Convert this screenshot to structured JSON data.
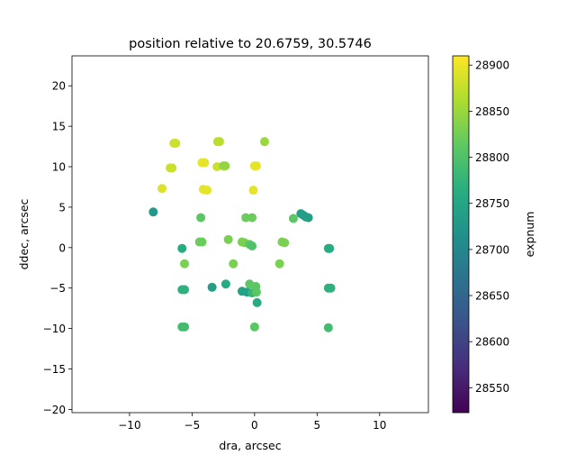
{
  "chart_data": {
    "type": "scatter",
    "title": "position relative to 20.6759, 30.5746",
    "xlabel": "dra, arcsec",
    "ylabel": "ddec, arcsec",
    "xlim": [
      -14.6,
      13.9
    ],
    "ylim": [
      -20.4,
      23.7
    ],
    "xticks": [
      -10,
      -5,
      0,
      5,
      10
    ],
    "yticks": [
      -20,
      -15,
      -10,
      -5,
      0,
      5,
      10,
      15,
      20
    ],
    "grid": false,
    "colorbar": {
      "label": "expnum",
      "colormap": "viridis",
      "range": [
        28523,
        28910
      ],
      "ticks": [
        28550,
        28600,
        28650,
        28700,
        28750,
        28800,
        28850,
        28900
      ]
    },
    "points": [
      {
        "x": -6.3,
        "y": 12.9,
        "c": 28880
      },
      {
        "x": -6.45,
        "y": 12.9,
        "c": 28880
      },
      {
        "x": -2.8,
        "y": 13.1,
        "c": 28870
      },
      {
        "x": -2.95,
        "y": 13.1,
        "c": 28870
      },
      {
        "x": 0.8,
        "y": 13.1,
        "c": 28850
      },
      {
        "x": -6.75,
        "y": 9.85,
        "c": 28880
      },
      {
        "x": -6.6,
        "y": 9.85,
        "c": 28880
      },
      {
        "x": -4.0,
        "y": 10.5,
        "c": 28895
      },
      {
        "x": -4.2,
        "y": 10.5,
        "c": 28895
      },
      {
        "x": -3.0,
        "y": 10.0,
        "c": 28880
      },
      {
        "x": -2.35,
        "y": 10.1,
        "c": 28845
      },
      {
        "x": -2.5,
        "y": 10.1,
        "c": 28845
      },
      {
        "x": 0.0,
        "y": 10.1,
        "c": 28895
      },
      {
        "x": 0.15,
        "y": 10.1,
        "c": 28895
      },
      {
        "x": -7.4,
        "y": 7.3,
        "c": 28890
      },
      {
        "x": -4.1,
        "y": 7.2,
        "c": 28895
      },
      {
        "x": -3.8,
        "y": 7.1,
        "c": 28895
      },
      {
        "x": -0.1,
        "y": 7.1,
        "c": 28895
      },
      {
        "x": -8.1,
        "y": 4.4,
        "c": 28730
      },
      {
        "x": -4.3,
        "y": 3.7,
        "c": 28810
      },
      {
        "x": -0.7,
        "y": 3.7,
        "c": 28820
      },
      {
        "x": -0.2,
        "y": 3.7,
        "c": 28820
      },
      {
        "x": 3.1,
        "y": 3.6,
        "c": 28810
      },
      {
        "x": 3.7,
        "y": 4.2,
        "c": 28740
      },
      {
        "x": 3.9,
        "y": 4.0,
        "c": 28740
      },
      {
        "x": 4.1,
        "y": 3.8,
        "c": 28740
      },
      {
        "x": 4.3,
        "y": 3.7,
        "c": 28740
      },
      {
        "x": -5.8,
        "y": -0.1,
        "c": 28760
      },
      {
        "x": -4.4,
        "y": 0.7,
        "c": 28820
      },
      {
        "x": -4.2,
        "y": 0.7,
        "c": 28820
      },
      {
        "x": -2.1,
        "y": 1.0,
        "c": 28830
      },
      {
        "x": -1.0,
        "y": 0.7,
        "c": 28830
      },
      {
        "x": -0.8,
        "y": 0.6,
        "c": 28830
      },
      {
        "x": -0.4,
        "y": 0.4,
        "c": 28810
      },
      {
        "x": -0.2,
        "y": 0.2,
        "c": 28800
      },
      {
        "x": 2.2,
        "y": 0.7,
        "c": 28830
      },
      {
        "x": 2.4,
        "y": 0.6,
        "c": 28830
      },
      {
        "x": 5.9,
        "y": -0.1,
        "c": 28760
      },
      {
        "x": 6.0,
        "y": -0.1,
        "c": 28760
      },
      {
        "x": -5.6,
        "y": -2.0,
        "c": 28830
      },
      {
        "x": -1.7,
        "y": -2.0,
        "c": 28830
      },
      {
        "x": 2.0,
        "y": -2.0,
        "c": 28830
      },
      {
        "x": -5.8,
        "y": -5.2,
        "c": 28770
      },
      {
        "x": -5.6,
        "y": -5.2,
        "c": 28770
      },
      {
        "x": -3.4,
        "y": -4.9,
        "c": 28740
      },
      {
        "x": -2.3,
        "y": -4.5,
        "c": 28760
      },
      {
        "x": -1.0,
        "y": -5.4,
        "c": 28745
      },
      {
        "x": -0.6,
        "y": -5.5,
        "c": 28745
      },
      {
        "x": -0.4,
        "y": -4.5,
        "c": 28810
      },
      {
        "x": -0.2,
        "y": -5.6,
        "c": 28780
      },
      {
        "x": 0.1,
        "y": -4.8,
        "c": 28810
      },
      {
        "x": 0.15,
        "y": -5.5,
        "c": 28810
      },
      {
        "x": 0.2,
        "y": -6.8,
        "c": 28760
      },
      {
        "x": 5.9,
        "y": -5.0,
        "c": 28770
      },
      {
        "x": 6.1,
        "y": -5.0,
        "c": 28770
      },
      {
        "x": -5.8,
        "y": -9.8,
        "c": 28790
      },
      {
        "x": -5.6,
        "y": -9.8,
        "c": 28790
      },
      {
        "x": 0.0,
        "y": -9.8,
        "c": 28810
      },
      {
        "x": 5.9,
        "y": -9.9,
        "c": 28790
      }
    ]
  }
}
